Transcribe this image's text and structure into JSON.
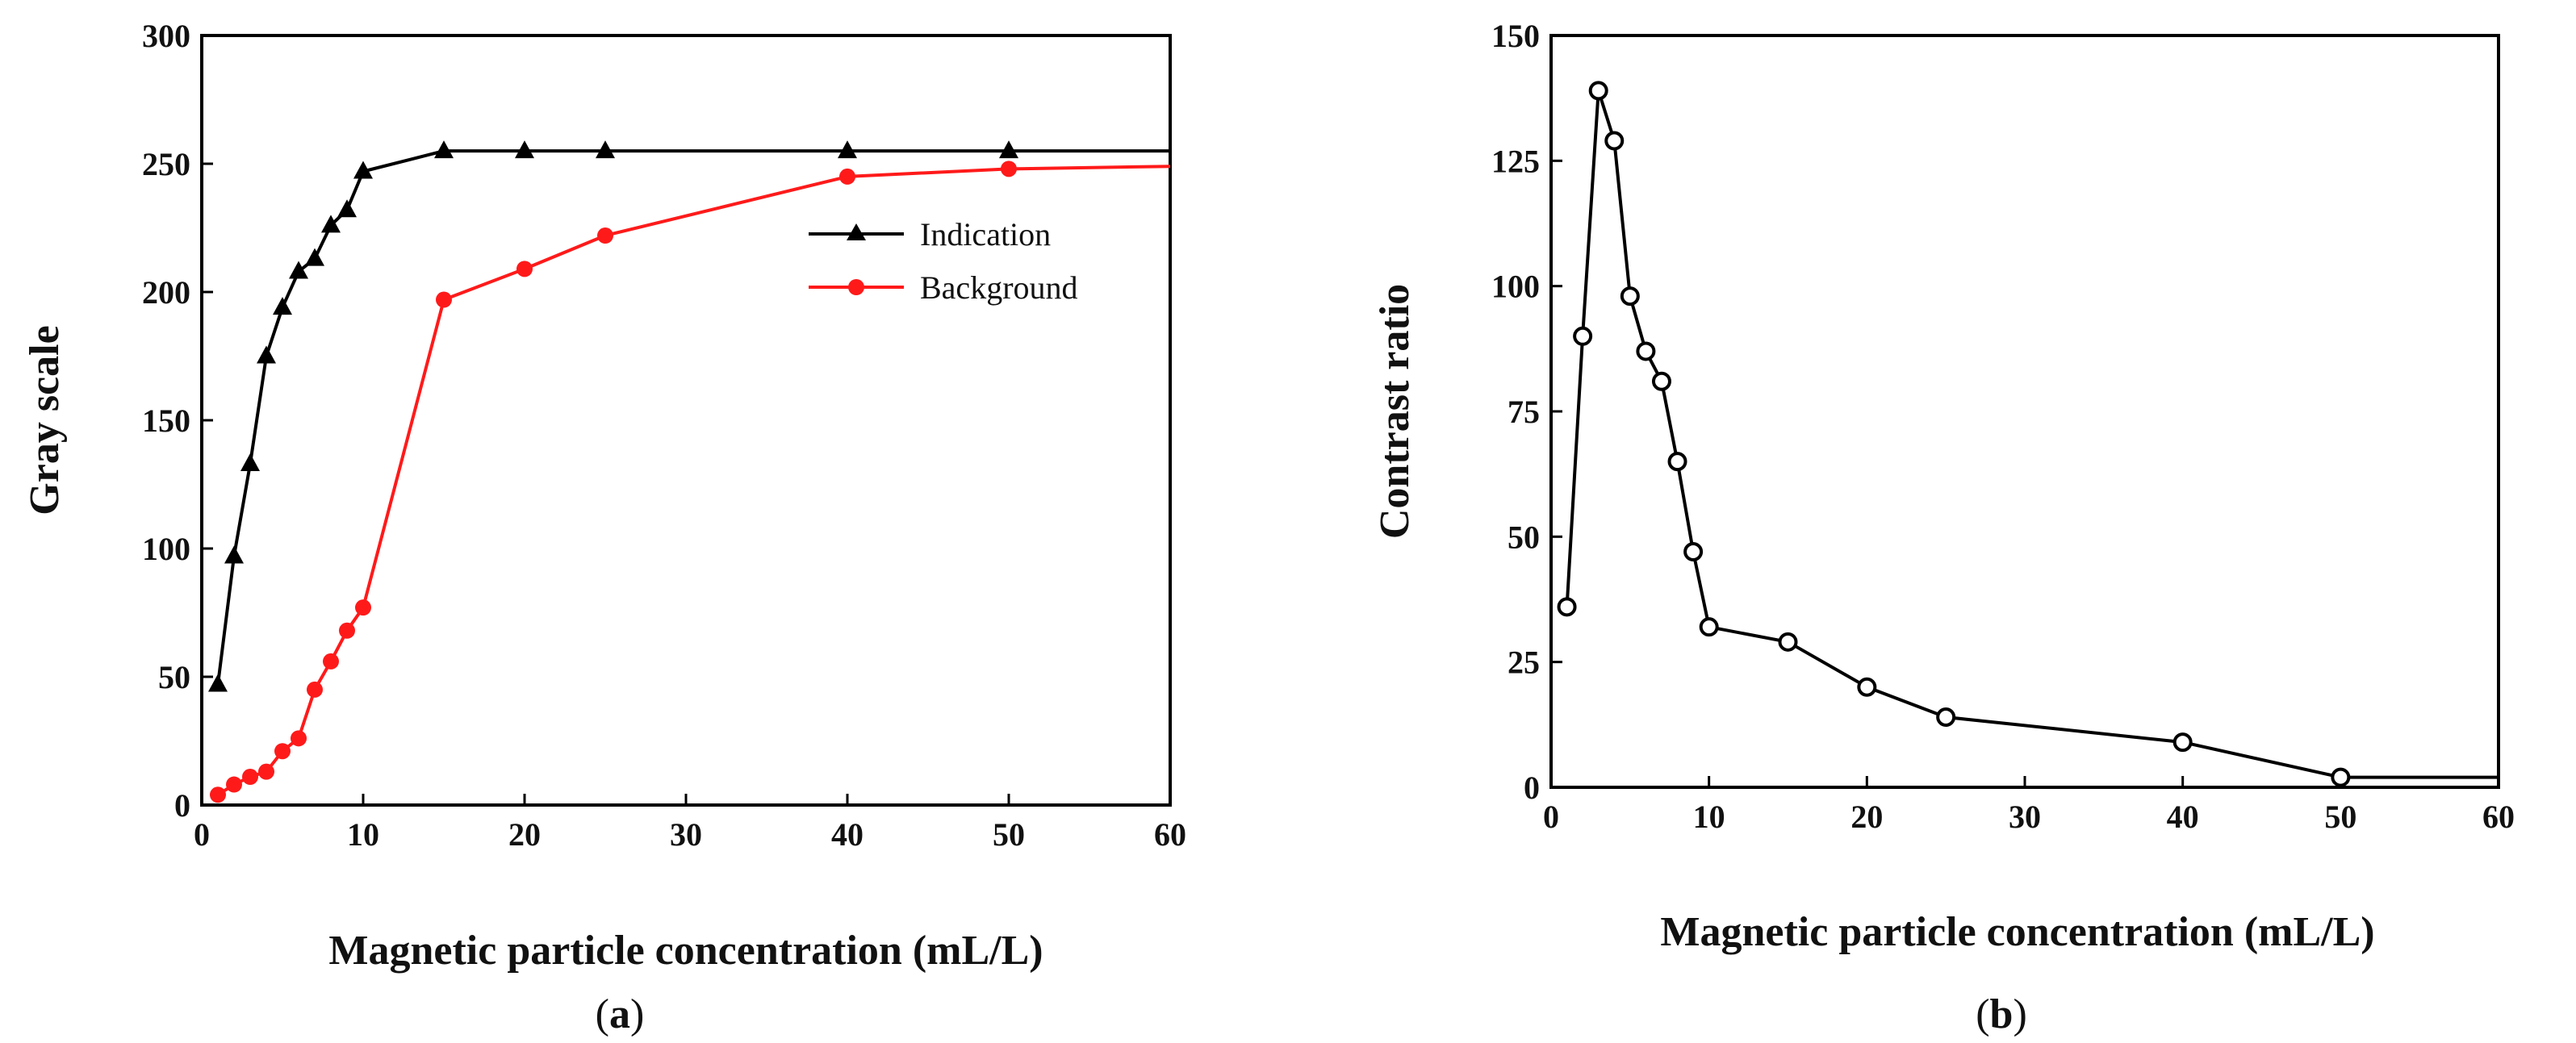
{
  "chart_data": [
    {
      "id": "a",
      "type": "line",
      "panel_label": {
        "open": "(",
        "letter": "a",
        "close": ")"
      },
      "xlabel": "Magnetic particle concentration (mL/L)",
      "ylabel": "Gray scale",
      "xlim": [
        0,
        60
      ],
      "ylim": [
        0,
        300
      ],
      "xticks": [
        0,
        10,
        20,
        30,
        40,
        50,
        60
      ],
      "yticks": [
        0,
        50,
        100,
        150,
        200,
        250,
        300
      ],
      "legend": "right",
      "series": [
        {
          "name": "Indication",
          "color": "#000000",
          "marker": "triangle",
          "x": [
            1,
            2,
            3,
            4,
            5,
            6,
            7,
            8,
            9,
            10,
            15,
            20,
            25,
            40,
            50,
            60
          ],
          "y": [
            47,
            97,
            133,
            175,
            194,
            208,
            213,
            226,
            232,
            247,
            255,
            255,
            255,
            255,
            255,
            255
          ],
          "marker_until": 50
        },
        {
          "name": "Background",
          "color": "#ff1a1a",
          "marker": "circle",
          "x": [
            1,
            2,
            3,
            4,
            5,
            6,
            7,
            8,
            9,
            10,
            15,
            20,
            25,
            40,
            50,
            60
          ],
          "y": [
            4,
            8,
            11,
            13,
            21,
            26,
            45,
            56,
            68,
            77,
            197,
            209,
            222,
            245,
            248,
            249
          ],
          "marker_until": 50
        }
      ]
    },
    {
      "id": "b",
      "type": "line",
      "panel_label": {
        "open": "(",
        "letter": "b",
        "close": ")"
      },
      "xlabel": "Magnetic particle concentration (mL/L)",
      "ylabel": "Contrast ratio",
      "xlim": [
        0,
        60
      ],
      "ylim": [
        0,
        150
      ],
      "xticks": [
        0,
        10,
        20,
        30,
        40,
        50,
        60
      ],
      "yticks": [
        0,
        25,
        50,
        75,
        100,
        125,
        150
      ],
      "series": [
        {
          "name": "Contrast ratio",
          "color": "#000000",
          "marker": "open-circle",
          "x": [
            1,
            2,
            3,
            4,
            5,
            6,
            7,
            8,
            9,
            10,
            15,
            20,
            25,
            40,
            50,
            60
          ],
          "y": [
            36,
            90,
            139,
            129,
            98,
            87,
            81,
            65,
            47,
            32,
            29,
            20,
            14,
            9,
            2,
            2
          ],
          "marker_until": 50
        }
      ]
    }
  ]
}
